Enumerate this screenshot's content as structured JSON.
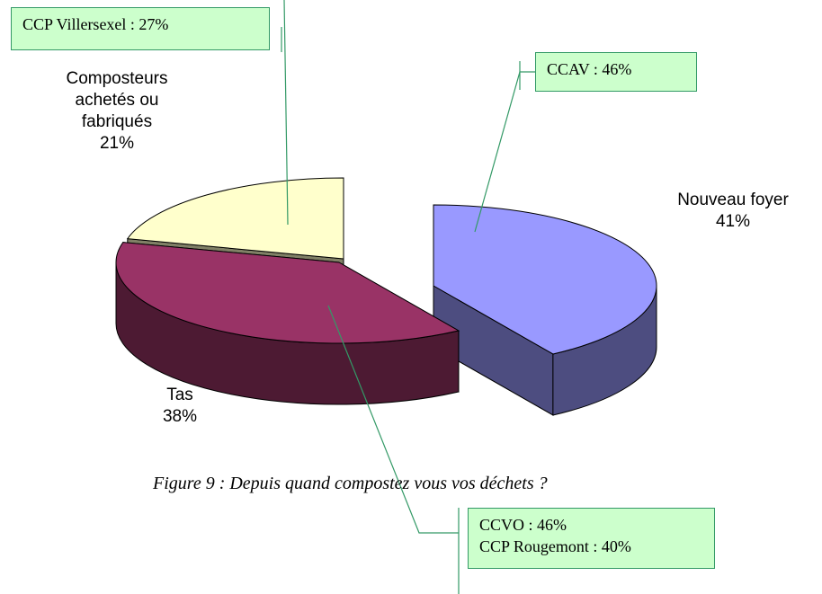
{
  "chart_data": {
    "type": "pie",
    "categories": [
      "Nouveau foyer",
      "Tas",
      "Composteurs achetés ou fabriqués"
    ],
    "values": [
      41,
      38,
      21
    ],
    "value_labels": [
      "41%",
      "38%",
      "21%"
    ],
    "colors": [
      "#9999ff",
      "#993366",
      "#ffffcc"
    ],
    "side_colors": [
      "#4d4d80",
      "#4d1a33",
      "#808066"
    ],
    "annotations": [
      "CCP Villersexel : 27%",
      "CCAV : 46%",
      "CCVO : 46%",
      "CCP Rougemont : 40%"
    ],
    "caption": "Figure 9 : Depuis quand compostez vous vos déchets ?"
  }
}
